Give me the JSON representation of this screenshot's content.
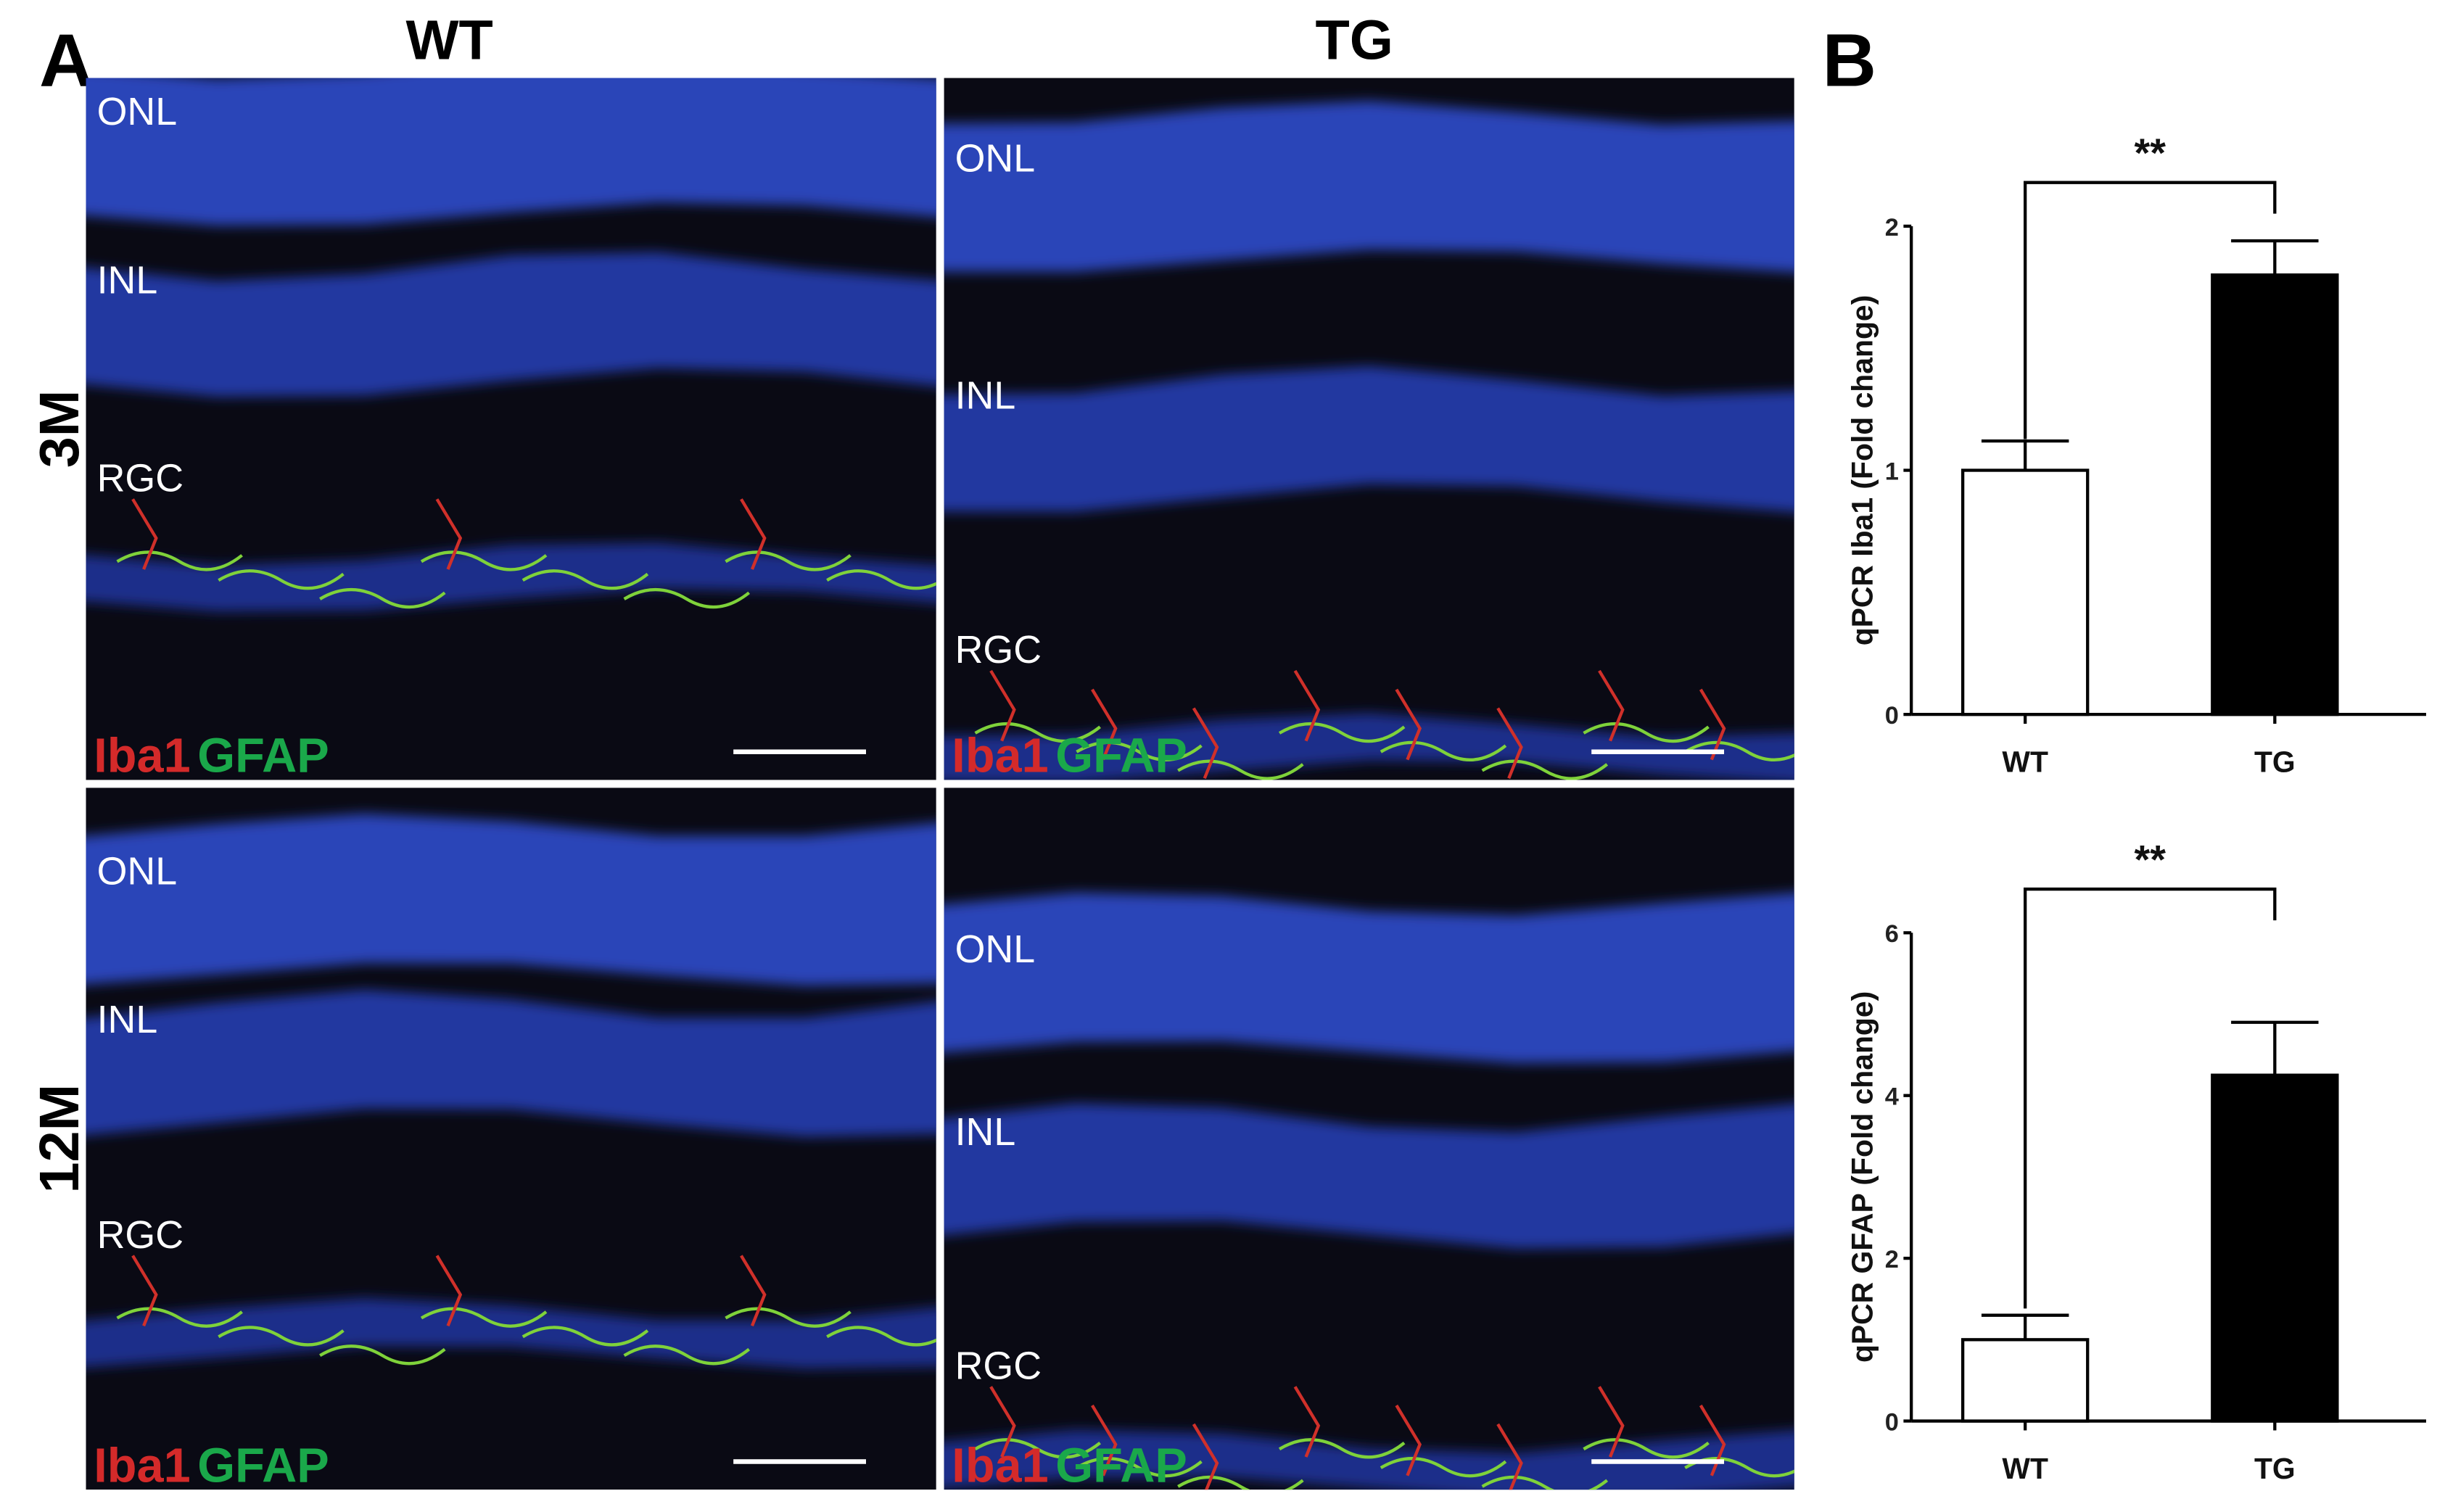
{
  "panel_labels": [
    "A",
    "B"
  ],
  "columns": [
    "WT",
    "TG"
  ],
  "rows": [
    "3M",
    "12M"
  ],
  "images": [
    {
      "layers": [
        "ONL",
        "INL",
        "RGC"
      ],
      "stain": [
        "Iba1",
        "GFAP"
      ]
    },
    {
      "layers": [
        "ONL",
        "INL",
        "RGC"
      ],
      "stain": [
        "Iba1",
        "GFAP"
      ]
    },
    {
      "layers": [
        "ONL",
        "INL",
        "RGC"
      ],
      "stain": [
        "Iba1",
        "GFAP"
      ]
    },
    {
      "layers": [
        "ONL",
        "INL",
        "RGC"
      ],
      "stain": [
        "Iba1",
        "GFAP"
      ]
    }
  ],
  "chart_data": [
    {
      "type": "bar",
      "y_label": "qPCR Iba1 (Fold change)",
      "categories": [
        "WT",
        "TG"
      ],
      "values": [
        1.0,
        1.8
      ],
      "errors": [
        0.12,
        0.14
      ],
      "colors": [
        "#ffffff",
        "#000000"
      ],
      "ylim": [
        0,
        2
      ],
      "yticks": [
        0,
        1,
        2
      ],
      "significance": "**"
    },
    {
      "type": "bar",
      "y_label": "qPCR GFAP (Fold change)",
      "categories": [
        "WT",
        "TG"
      ],
      "values": [
        1.0,
        4.25
      ],
      "errors": [
        0.3,
        0.65
      ],
      "colors": [
        "#ffffff",
        "#000000"
      ],
      "ylim": [
        0,
        6
      ],
      "yticks": [
        0,
        2,
        4,
        6
      ],
      "significance": "**"
    }
  ]
}
